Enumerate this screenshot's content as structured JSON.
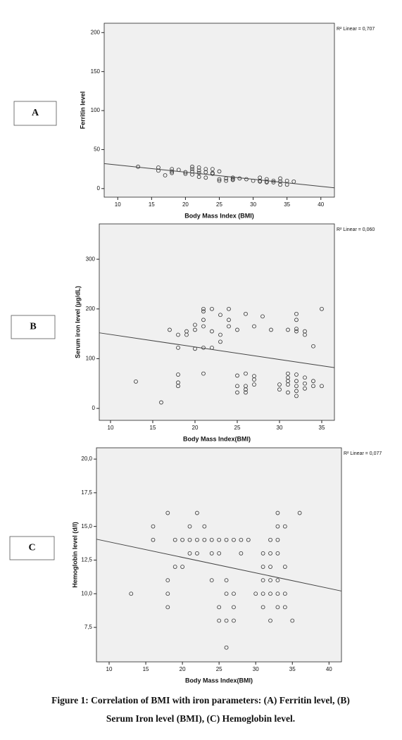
{
  "chart_data": [
    {
      "type": "scatter",
      "label": "A",
      "x_label": "Body Mass Index (BMI)",
      "y_label": "Ferritin level",
      "annotation": "R² Linear = 0,707",
      "xlim": [
        8,
        42
      ],
      "ylim": [
        -11,
        212
      ],
      "xticks": [
        10,
        15,
        20,
        25,
        30,
        35,
        40
      ],
      "yticks": [
        0,
        50,
        100,
        150,
        200
      ],
      "color": "#333333",
      "x": [
        13,
        16,
        16,
        17,
        18,
        18,
        18,
        19,
        20,
        20,
        21,
        21,
        21,
        21,
        22,
        22,
        22,
        22,
        23,
        23,
        23,
        24,
        24,
        24,
        25,
        25,
        25,
        26,
        26,
        27,
        27,
        27,
        28,
        29,
        30,
        31,
        31,
        31,
        32,
        32,
        32,
        33,
        33,
        34,
        34,
        34,
        35,
        35,
        36
      ],
      "values": [
        28,
        27,
        23,
        17,
        25,
        22,
        20,
        24,
        21,
        19,
        28,
        25,
        22,
        18,
        27,
        23,
        20,
        15,
        25,
        21,
        14,
        25,
        20,
        19,
        22,
        12,
        10,
        13,
        10,
        14,
        12,
        11,
        13,
        12,
        10,
        14,
        10,
        9,
        12,
        9,
        8,
        10,
        8,
        13,
        9,
        5,
        10,
        5,
        9
      ],
      "fit": {
        "x": [
          8,
          42
        ],
        "values": [
          32,
          1
        ]
      }
    },
    {
      "type": "scatter",
      "label": "B",
      "x_label": "Body Mass Index(BMI)",
      "y_label": "Serum iron level (µg/dL)",
      "annotation": "R² Linear = 0,060",
      "xlim": [
        8.67,
        36.5
      ],
      "ylim": [
        -24,
        371
      ],
      "xticks": [
        10,
        15,
        20,
        25,
        30,
        35
      ],
      "yticks": [
        0,
        100,
        200,
        300
      ],
      "color": "#333333",
      "x": [
        13,
        16,
        17,
        18,
        18,
        18,
        18,
        18,
        19,
        19,
        20,
        20,
        20,
        21,
        21,
        21,
        21,
        21,
        21,
        22,
        22,
        22,
        23,
        23,
        23,
        24,
        24,
        24,
        25,
        25,
        25,
        25,
        26,
        26,
        26,
        26,
        26,
        27,
        27,
        27,
        27,
        28,
        29,
        30,
        30,
        31,
        31,
        31,
        31,
        31,
        31,
        32,
        32,
        32,
        32,
        32,
        32,
        32,
        32,
        32,
        33,
        33,
        33,
        33,
        33,
        34,
        34,
        34,
        35,
        35
      ],
      "values": [
        54,
        12,
        158,
        148,
        122,
        68,
        52,
        45,
        155,
        148,
        168,
        158,
        120,
        200,
        195,
        178,
        165,
        122,
        70,
        200,
        155,
        122,
        188,
        148,
        134,
        200,
        178,
        165,
        158,
        66,
        45,
        32,
        190,
        70,
        45,
        38,
        32,
        165,
        65,
        58,
        48,
        185,
        158,
        48,
        38,
        158,
        70,
        62,
        55,
        48,
        32,
        190,
        178,
        160,
        155,
        68,
        55,
        45,
        35,
        25,
        155,
        148,
        62,
        50,
        40,
        125,
        55,
        45,
        200,
        45
      ],
      "fit": {
        "x": [
          8.67,
          36.5
        ],
        "values": [
          152,
          82
        ]
      }
    },
    {
      "type": "scatter",
      "label": "C",
      "x_label": "Body Mass Index(BMI)",
      "y_label": "Hemoglobin level (d/l)",
      "annotation": "R² Linear = 0,077",
      "xlim": [
        8.27,
        41.7
      ],
      "ylim": [
        4.94,
        20.84
      ],
      "xticks": [
        10,
        15,
        20,
        25,
        30,
        35,
        40
      ],
      "yticks": [
        {
          "value": 7.5,
          "label": "7,5"
        },
        {
          "value": 10,
          "label": "10,0"
        },
        {
          "value": 12.5,
          "label": "12,5"
        },
        {
          "value": 15,
          "label": "15,0"
        },
        {
          "value": 17.5,
          "label": "17,5"
        },
        {
          "value": 20,
          "label": "20,0"
        }
      ],
      "color": "#333333",
      "x": [
        13,
        16,
        16,
        18,
        18,
        18,
        18,
        19,
        19,
        20,
        20,
        21,
        21,
        21,
        22,
        22,
        22,
        23,
        23,
        24,
        24,
        24,
        25,
        25,
        25,
        25,
        26,
        26,
        26,
        26,
        26,
        27,
        27,
        27,
        27,
        28,
        28,
        29,
        30,
        31,
        31,
        31,
        31,
        31,
        32,
        32,
        32,
        32,
        32,
        32,
        33,
        33,
        33,
        33,
        33,
        33,
        33,
        34,
        34,
        34,
        34,
        35,
        36
      ],
      "values": [
        10,
        15,
        14,
        16,
        11,
        10,
        9,
        14,
        12,
        14,
        12,
        15,
        14,
        13,
        16,
        14,
        13,
        15,
        14,
        14,
        13,
        11,
        14,
        13,
        9,
        8,
        14,
        11,
        10,
        8,
        6,
        14,
        10,
        9,
        8,
        14,
        13,
        14,
        10,
        13,
        12,
        11,
        10,
        9,
        14,
        13,
        12,
        11,
        10,
        8,
        16,
        15,
        14,
        13,
        11,
        10,
        9,
        15,
        12,
        10,
        9,
        8,
        16
      ],
      "fit": {
        "x": [
          8.27,
          41.7
        ],
        "values": [
          14.05,
          10.2
        ]
      }
    }
  ],
  "caption": [
    "Figure 1: Correlation of BMI with iron parameters: (A) Ferritin level, (B)",
    "Serum Iron level (BMI), (C) Hemoglobin level."
  ]
}
